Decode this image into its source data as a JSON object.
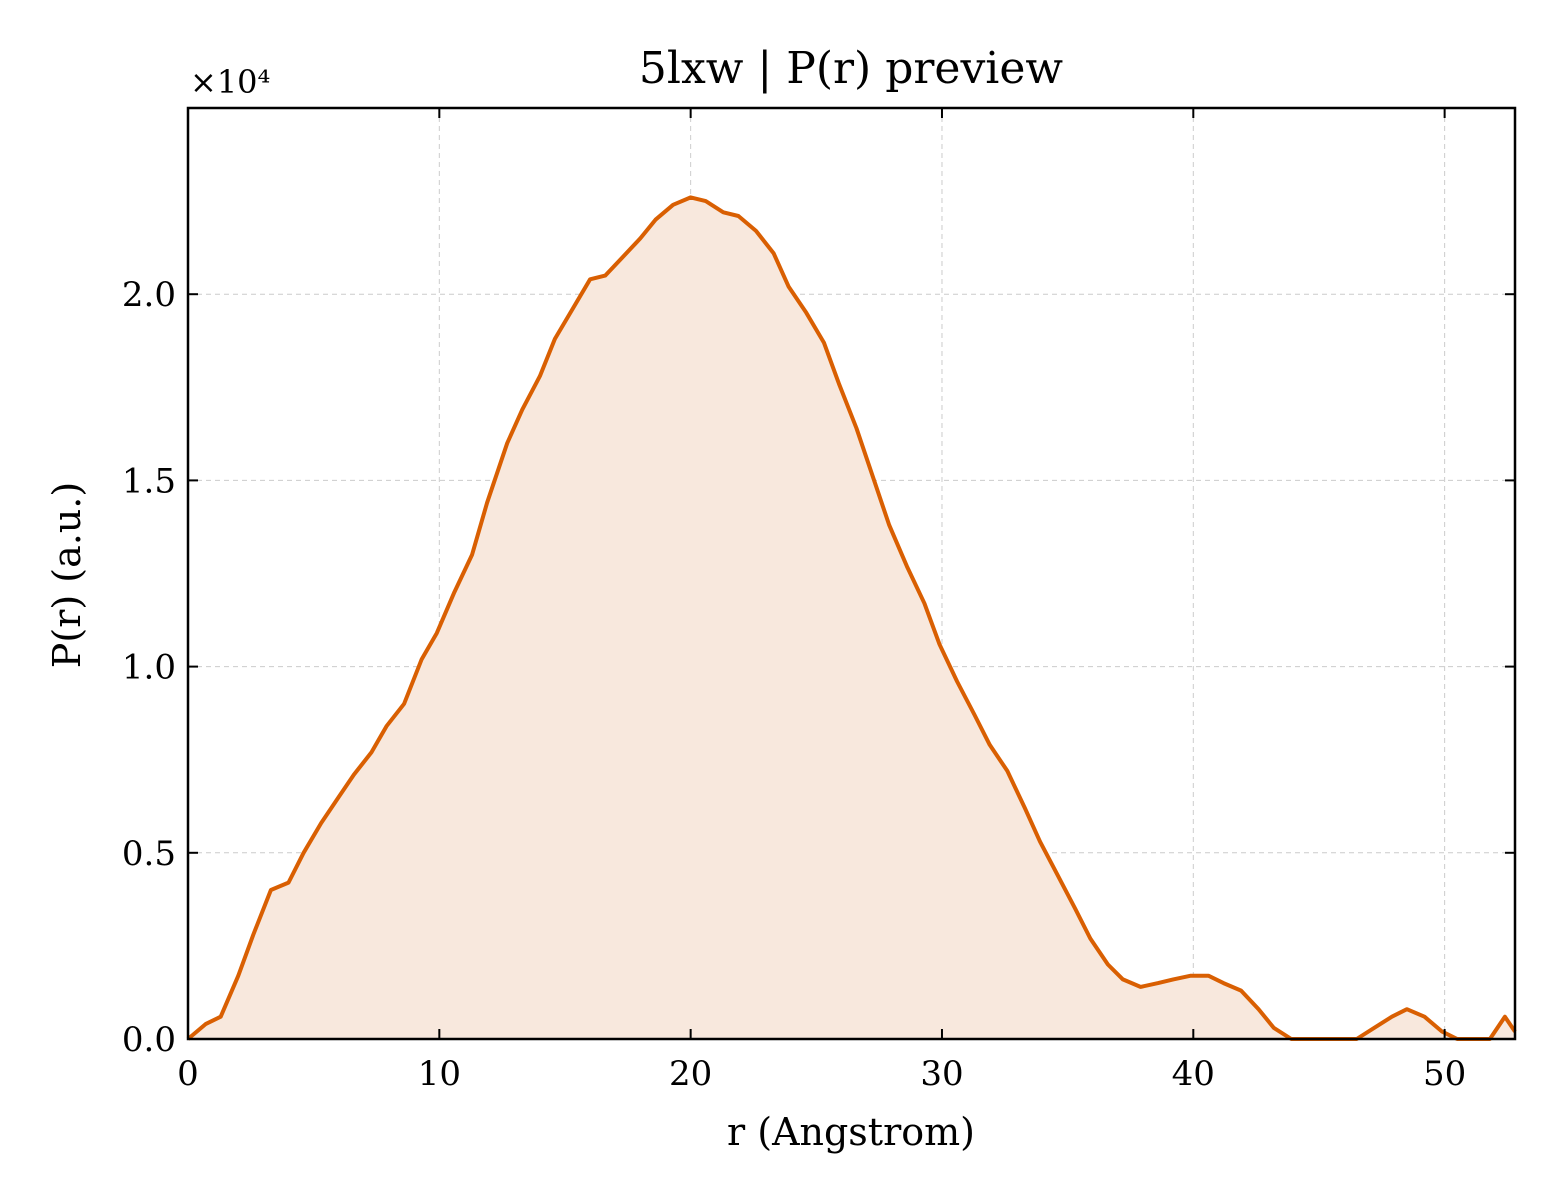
{
  "chart_data": {
    "type": "area",
    "title": "5lxw | P(r) preview",
    "xlabel": "r (Angstrom)",
    "ylabel": "P(r) (a.u.)",
    "y_multiplier_label": "×10⁴",
    "xlim": [
      0,
      52.8
    ],
    "ylim": [
      0,
      2.5
    ],
    "x_ticks": [
      0,
      10,
      20,
      30,
      40,
      50
    ],
    "x_tick_labels": [
      "0",
      "10",
      "20",
      "30",
      "40",
      "50"
    ],
    "y_ticks": [
      0,
      0.5,
      1.0,
      1.5,
      2.0
    ],
    "y_tick_labels": [
      "0.0",
      "0.5",
      "1.0",
      "1.5",
      "2.0"
    ],
    "grid": true,
    "line_color": "#d95f02",
    "fill_color": "#f8e8dd",
    "series": [
      {
        "x": [
          0.0,
          0.7,
          1.3,
          2.0,
          2.6,
          3.3,
          4.0,
          4.6,
          5.3,
          6.0,
          6.6,
          7.3,
          7.9,
          8.6,
          9.3,
          9.9,
          10.6,
          11.3,
          11.9,
          12.7,
          13.3,
          14.0,
          14.6,
          15.3,
          16.0,
          16.6,
          17.3,
          18.0,
          18.6,
          19.3,
          20.0,
          20.6,
          21.3,
          21.9,
          22.6,
          23.3,
          23.9,
          24.6,
          25.3,
          25.9,
          26.6,
          27.3,
          27.9,
          28.6,
          29.3,
          29.9,
          30.6,
          31.3,
          31.9,
          32.6,
          33.3,
          33.9,
          34.6,
          35.3,
          35.9,
          36.6,
          37.2,
          37.9,
          38.6,
          39.2,
          39.9,
          40.6,
          41.2,
          41.9,
          42.6,
          43.2,
          43.9,
          44.6,
          45.2,
          45.9,
          46.5,
          47.2,
          47.9,
          48.5,
          49.2,
          49.9,
          50.5,
          51.2,
          51.8,
          52.4,
          52.8
        ],
        "y": [
          0.0,
          0.04,
          0.06,
          0.17,
          0.28,
          0.4,
          0.42,
          0.5,
          0.58,
          0.65,
          0.71,
          0.77,
          0.84,
          0.9,
          1.02,
          1.09,
          1.2,
          1.3,
          1.44,
          1.6,
          1.69,
          1.78,
          1.88,
          1.96,
          2.04,
          2.05,
          2.1,
          2.15,
          2.2,
          2.24,
          2.26,
          2.25,
          2.22,
          2.21,
          2.17,
          2.11,
          2.02,
          1.95,
          1.87,
          1.76,
          1.64,
          1.5,
          1.38,
          1.27,
          1.17,
          1.06,
          0.96,
          0.87,
          0.79,
          0.72,
          0.62,
          0.53,
          0.44,
          0.35,
          0.27,
          0.2,
          0.16,
          0.14,
          0.15,
          0.16,
          0.17,
          0.17,
          0.15,
          0.13,
          0.08,
          0.03,
          0.0,
          0.0,
          0.0,
          0.0,
          0.0,
          0.03,
          0.06,
          0.08,
          0.06,
          0.02,
          0.0,
          0.0,
          0.0,
          0.06,
          0.02
        ]
      }
    ]
  }
}
